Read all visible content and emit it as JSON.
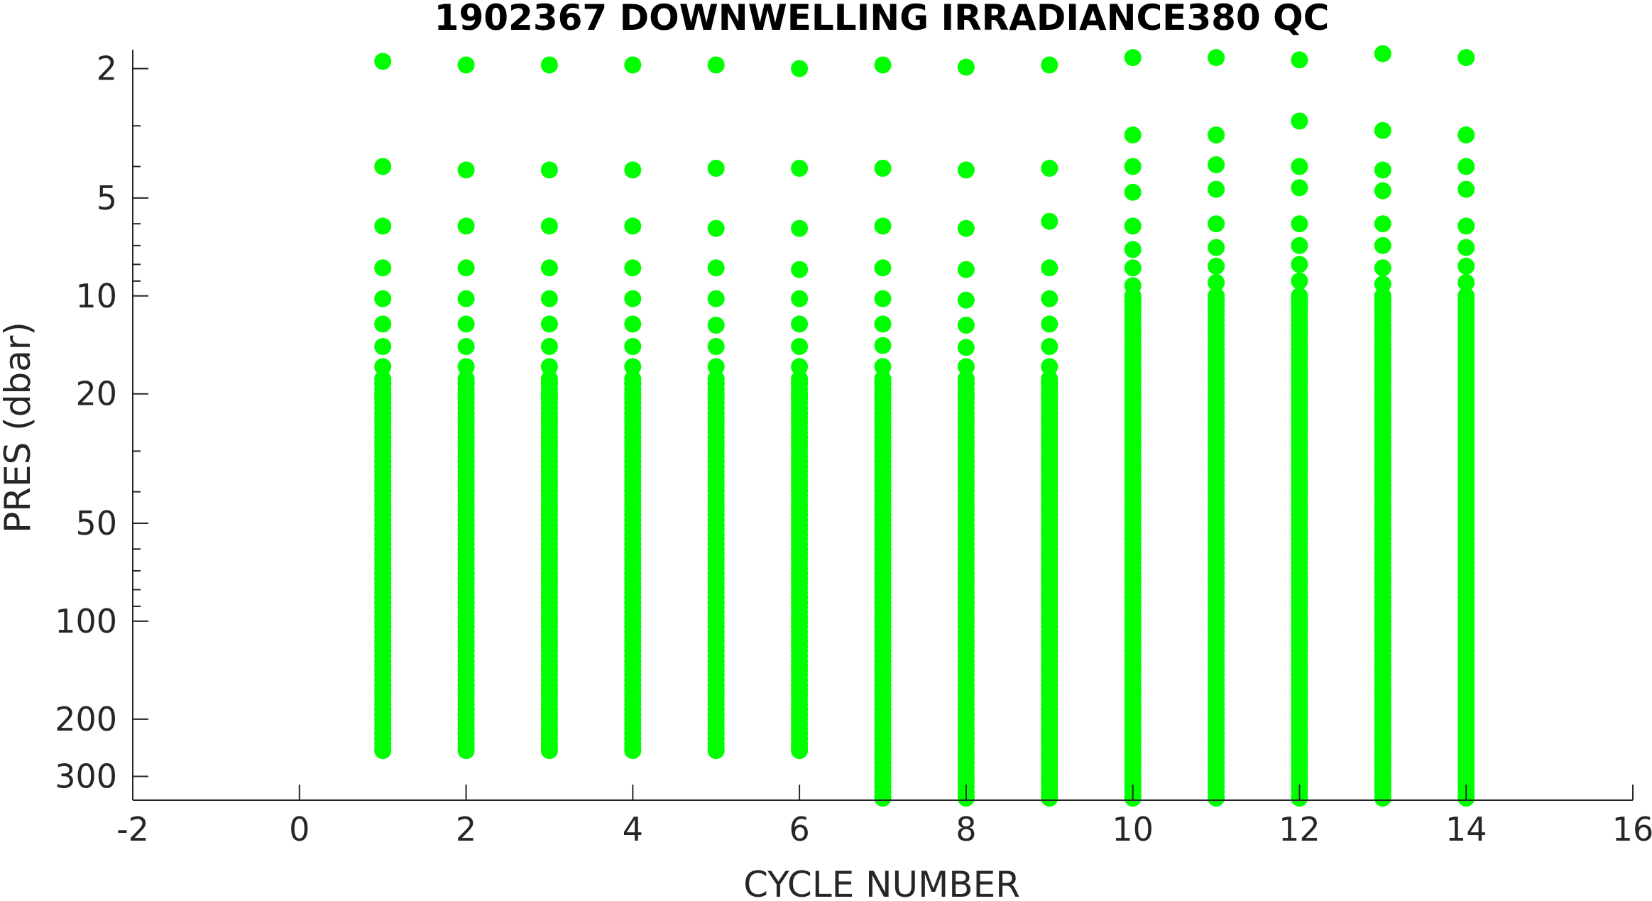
{
  "chart_data": {
    "type": "scatter",
    "title": "1902367  DOWNWELLING IRRADIANCE380 QC",
    "xlabel": "CYCLE NUMBER",
    "ylabel": "PRES (dbar)",
    "xlim": [
      -2,
      16
    ],
    "ylim": [
      1.75,
      355
    ],
    "y_scale": "log",
    "y_reversed": true,
    "grid": false,
    "legend": "none",
    "marker_color": "#00ff00",
    "x_ticks": [
      "-2",
      "0",
      "2",
      "4",
      "6",
      "8",
      "10",
      "12",
      "14",
      "16"
    ],
    "x_tick_values": [
      -2,
      0,
      2,
      4,
      6,
      8,
      10,
      12,
      14,
      16
    ],
    "y_ticks": [
      "2",
      "5",
      "10",
      "20",
      "50",
      "100",
      "200",
      "300"
    ],
    "y_tick_values": [
      2,
      5,
      10,
      20,
      50,
      100,
      200,
      300
    ],
    "cycles": [
      {
        "cycle": 1,
        "pres": [
          1.9,
          4.0,
          6.1,
          8.2,
          10.2,
          12.2,
          14.3,
          16.5,
          18.5,
          20.5
        ],
        "dense_from": 18,
        "max_pres": 250
      },
      {
        "cycle": 2,
        "pres": [
          1.95,
          4.1,
          6.1,
          8.2,
          10.2,
          12.2,
          14.3,
          16.5,
          18.5,
          20.5
        ],
        "dense_from": 18,
        "max_pres": 250
      },
      {
        "cycle": 3,
        "pres": [
          1.95,
          4.1,
          6.1,
          8.2,
          10.2,
          12.2,
          14.3,
          16.5,
          18.5,
          20.5
        ],
        "dense_from": 18,
        "max_pres": 250
      },
      {
        "cycle": 4,
        "pres": [
          1.95,
          4.1,
          6.1,
          8.2,
          10.2,
          12.2,
          14.3,
          16.5,
          18.5,
          20.5
        ],
        "dense_from": 18,
        "max_pres": 250
      },
      {
        "cycle": 5,
        "pres": [
          1.95,
          4.05,
          6.2,
          8.2,
          10.2,
          12.3,
          14.3,
          16.5,
          18.5,
          20.5
        ],
        "dense_from": 18,
        "max_pres": 250
      },
      {
        "cycle": 6,
        "pres": [
          2.0,
          4.05,
          6.2,
          8.3,
          10.2,
          12.2,
          14.3,
          16.5,
          18.5,
          20.5
        ],
        "dense_from": 18,
        "max_pres": 250
      },
      {
        "cycle": 7,
        "pres": [
          1.95,
          4.05,
          6.1,
          8.2,
          10.2,
          12.2,
          14.2,
          16.5,
          18.5,
          20.5
        ],
        "dense_from": 18,
        "max_pres": 350
      },
      {
        "cycle": 8,
        "pres": [
          1.98,
          4.1,
          6.2,
          8.3,
          10.3,
          12.3,
          14.4,
          16.5,
          18.5,
          20.5
        ],
        "dense_from": 18,
        "max_pres": 350
      },
      {
        "cycle": 9,
        "pres": [
          1.95,
          4.05,
          5.9,
          8.2,
          10.2,
          12.2,
          14.3,
          16.5,
          18.5,
          20.5
        ],
        "dense_from": 18,
        "max_pres": 350
      },
      {
        "cycle": 10,
        "pres": [
          1.85,
          3.2,
          4.0,
          4.8,
          6.1,
          7.2,
          8.2,
          9.3,
          10.4
        ],
        "dense_from": 10,
        "max_pres": 350
      },
      {
        "cycle": 11,
        "pres": [
          1.85,
          3.2,
          3.95,
          4.7,
          6.0,
          7.1,
          8.1,
          9.1,
          10.3
        ],
        "dense_from": 10,
        "max_pres": 350
      },
      {
        "cycle": 12,
        "pres": [
          1.88,
          2.9,
          4.0,
          4.65,
          6.0,
          7.0,
          8.0,
          9.0,
          10.2
        ],
        "dense_from": 10,
        "max_pres": 350
      },
      {
        "cycle": 13,
        "pres": [
          1.8,
          3.1,
          4.1,
          4.75,
          6.0,
          7.0,
          8.2,
          9.2,
          10.3
        ],
        "dense_from": 10,
        "max_pres": 350
      },
      {
        "cycle": 14,
        "pres": [
          1.85,
          3.2,
          4.0,
          4.7,
          6.1,
          7.1,
          8.1,
          9.1,
          10.3
        ],
        "dense_from": 10,
        "max_pres": 350
      }
    ]
  }
}
